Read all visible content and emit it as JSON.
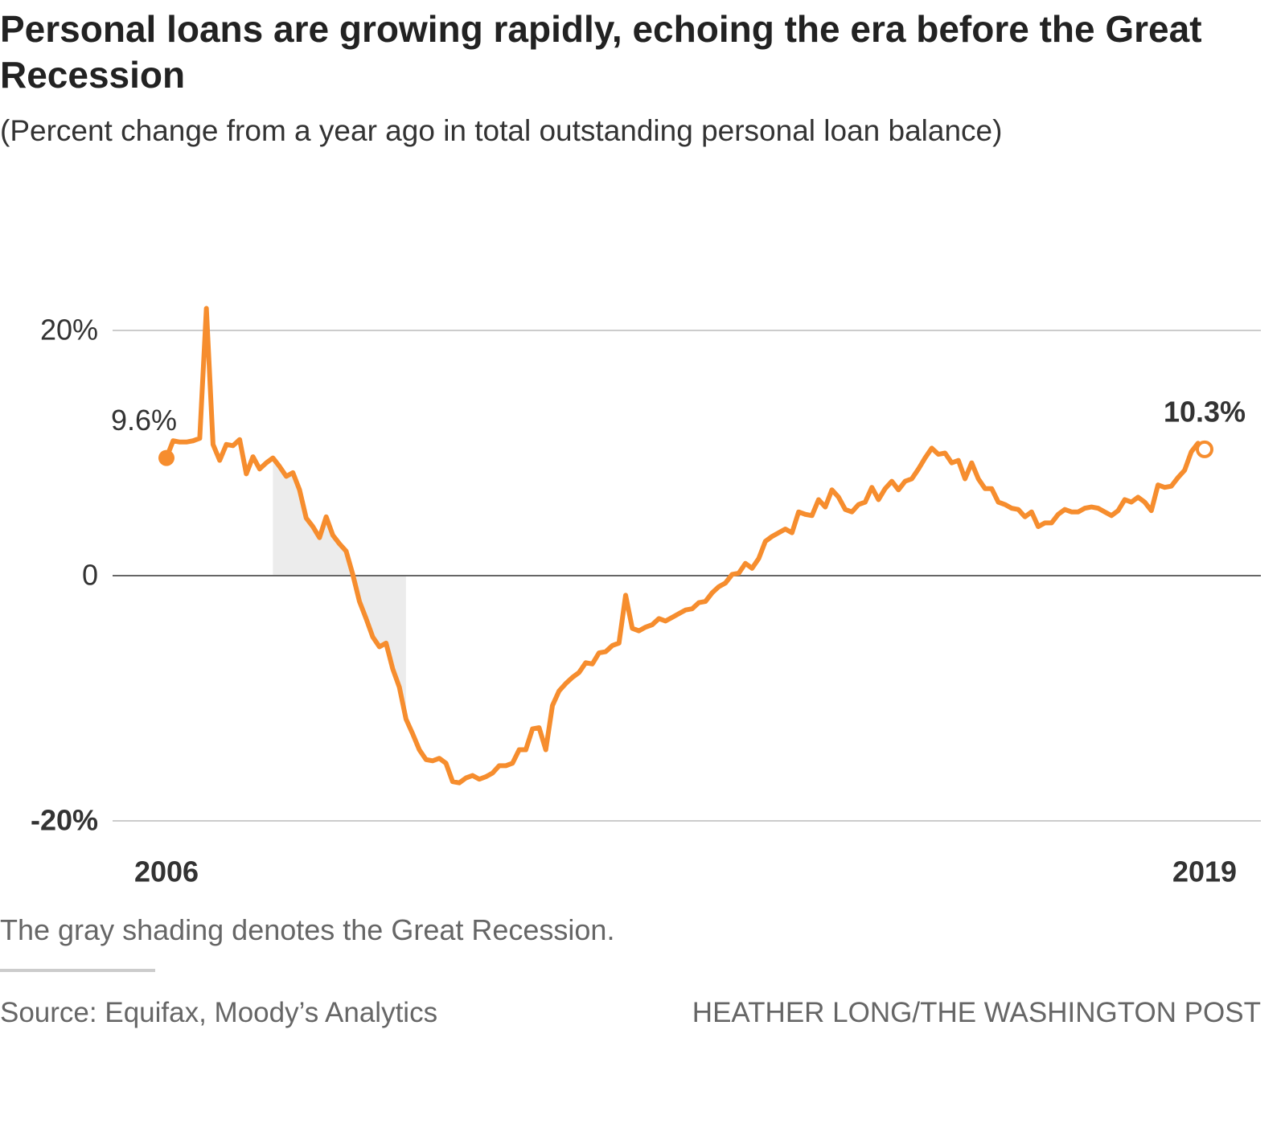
{
  "chart_data": {
    "type": "line",
    "title": "Personal loans are growing rapidly, echoing the era before the Great Recession",
    "subtitle": "(Percent change from a year ago in total outstanding personal loan balance)",
    "note": "The gray shading denotes the Great Recession.",
    "source": "Source: Equifax, Moody’s Analytics",
    "credit": "HEATHER LONG/THE WASHINGTON POST",
    "color": "#f68d2e",
    "shading_color": "#ececec",
    "shaded_range": [
      16,
      36
    ],
    "categories": [
      "2006",
      null,
      null,
      null,
      null,
      null,
      null,
      null,
      null,
      null,
      null,
      null,
      null,
      null,
      null,
      null,
      null,
      null,
      null,
      null,
      null,
      null,
      null,
      null,
      null,
      null,
      null,
      null,
      null,
      null,
      null,
      null,
      null,
      null,
      null,
      null,
      null,
      null,
      null,
      null,
      null,
      null,
      null,
      null,
      null,
      null,
      null,
      null,
      null,
      null,
      null,
      null,
      null,
      null,
      null,
      null,
      null,
      null,
      null,
      null,
      null,
      null,
      null,
      null,
      null,
      null,
      null,
      null,
      null,
      null,
      null,
      null,
      null,
      null,
      null,
      null,
      null,
      null,
      null,
      null,
      null,
      null,
      null,
      null,
      null,
      null,
      null,
      null,
      null,
      null,
      null,
      null,
      null,
      null,
      null,
      null,
      null,
      null,
      null,
      null,
      null,
      null,
      null,
      null,
      null,
      null,
      null,
      null,
      null,
      null,
      null,
      null,
      null,
      null,
      null,
      null,
      null,
      null,
      null,
      null,
      null,
      null,
      null,
      null,
      null,
      null,
      null,
      null,
      null,
      null,
      null,
      null,
      null,
      null,
      null,
      null,
      null,
      null,
      null,
      null,
      null,
      null,
      null,
      null,
      null,
      null,
      null,
      null,
      null,
      null,
      null,
      null,
      null,
      null,
      null,
      null,
      "2019"
    ],
    "values": [
      9.6,
      11.0,
      10.9,
      10.9,
      11.0,
      11.2,
      21.8,
      10.7,
      9.4,
      10.7,
      10.6,
      11.1,
      8.3,
      9.7,
      8.7,
      9.2,
      9.6,
      8.9,
      8.1,
      8.4,
      7.0,
      4.7,
      4.0,
      3.1,
      4.8,
      3.3,
      2.6,
      2.0,
      0.1,
      -2.1,
      -3.5,
      -5.0,
      -5.8,
      -5.5,
      -7.6,
      -9.1,
      -11.7,
      -12.9,
      -14.2,
      -15.0,
      -15.1,
      -14.9,
      -15.3,
      -16.8,
      -16.9,
      -16.5,
      -16.3,
      -16.6,
      -16.4,
      -16.1,
      -15.5,
      -15.5,
      -15.3,
      -14.2,
      -14.2,
      -12.5,
      -12.4,
      -14.2,
      -10.6,
      -9.4,
      -8.8,
      -8.3,
      -7.9,
      -7.1,
      -7.2,
      -6.3,
      -6.2,
      -5.7,
      -5.5,
      -1.6,
      -4.3,
      -4.5,
      -4.2,
      -4.0,
      -3.5,
      -3.7,
      -3.4,
      -3.1,
      -2.8,
      -2.7,
      -2.2,
      -2.1,
      -1.4,
      -0.9,
      -0.6,
      0.1,
      0.2,
      1.0,
      0.6,
      1.4,
      2.8,
      3.2,
      3.5,
      3.8,
      3.5,
      5.2,
      5.0,
      4.9,
      6.2,
      5.6,
      7.0,
      6.4,
      5.4,
      5.2,
      5.8,
      6.0,
      7.2,
      6.2,
      7.1,
      7.7,
      7.0,
      7.7,
      7.9,
      8.7,
      9.6,
      10.4,
      9.9,
      10.0,
      9.2,
      9.4,
      7.9,
      9.2,
      7.9,
      7.1,
      7.1,
      6.0,
      5.8,
      5.5,
      5.4,
      4.8,
      5.2,
      4.0,
      4.3,
      4.3,
      5.0,
      5.4,
      5.2,
      5.2,
      5.5,
      5.6,
      5.5,
      5.2,
      4.9,
      5.3,
      6.2,
      6.0,
      6.4,
      6.0,
      5.3,
      7.4,
      7.2,
      7.3,
      8.0,
      8.6,
      10.1,
      10.8,
      10.3
    ],
    "value_labels": [
      "9.6%",
      null,
      null,
      null,
      null,
      null,
      null,
      null,
      null,
      null,
      null,
      null,
      null,
      null,
      null,
      null,
      null,
      null,
      null,
      null,
      null,
      null,
      null,
      null,
      null,
      null,
      null,
      null,
      null,
      null,
      null,
      null,
      null,
      null,
      null,
      null,
      null,
      null,
      null,
      null,
      null,
      null,
      null,
      null,
      null,
      null,
      null,
      null,
      null,
      null,
      null,
      null,
      null,
      null,
      null,
      null,
      null,
      null,
      null,
      null,
      null,
      null,
      null,
      null,
      null,
      null,
      null,
      null,
      null,
      null,
      null,
      null,
      null,
      null,
      null,
      null,
      null,
      null,
      null,
      null,
      null,
      null,
      null,
      null,
      null,
      null,
      null,
      null,
      null,
      null,
      null,
      null,
      null,
      null,
      null,
      null,
      null,
      null,
      null,
      null,
      null,
      null,
      null,
      null,
      null,
      null,
      null,
      null,
      null,
      null,
      null,
      null,
      null,
      null,
      null,
      null,
      null,
      null,
      null,
      null,
      null,
      null,
      null,
      null,
      null,
      null,
      null,
      null,
      null,
      null,
      null,
      null,
      null,
      null,
      null,
      null,
      null,
      null,
      null,
      null,
      null,
      null,
      null,
      null,
      null,
      null,
      null,
      null,
      null,
      null,
      null,
      null,
      null,
      null,
      null,
      null,
      "10.3%"
    ],
    "ylim": [
      -20,
      22
    ],
    "yticks": [
      {
        "value": -20,
        "label": "-20%"
      },
      0,
      {
        "value": 20,
        "label": "20%"
      }
    ],
    "grid": true
  }
}
